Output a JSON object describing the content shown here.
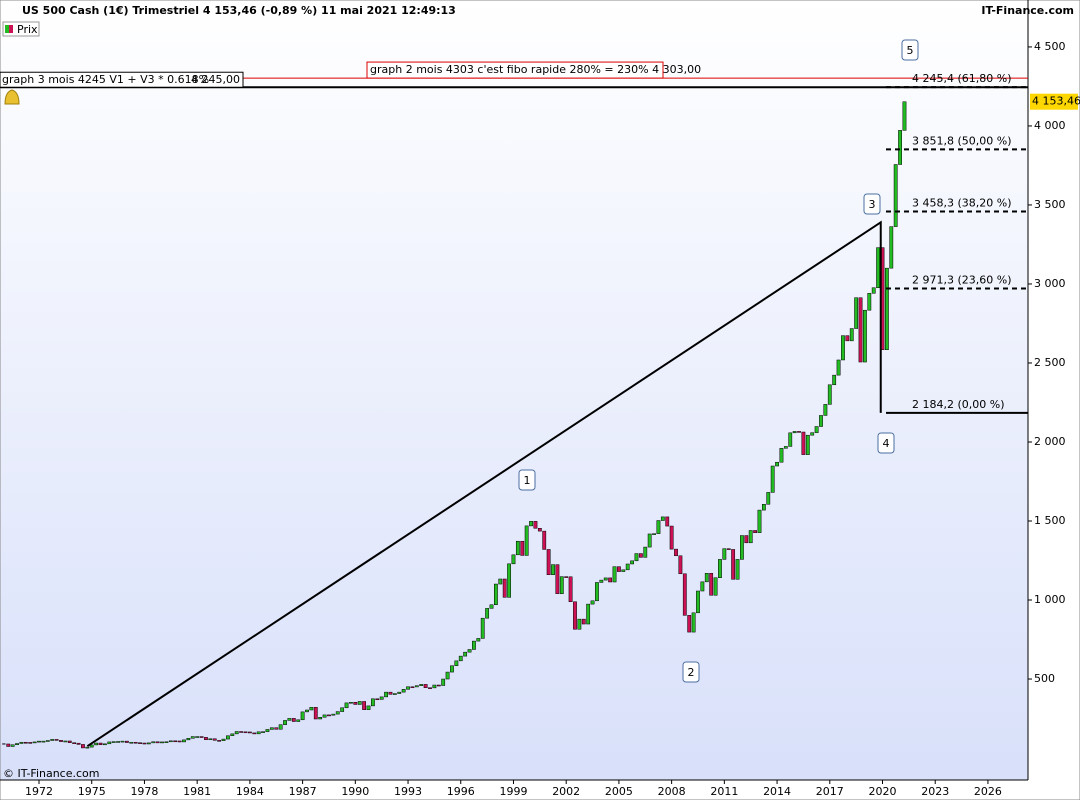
{
  "header": {
    "title": "US 500 Cash (1€) Trimestriel 4 153,46 (-0,89 %) 11 mai 2021 12:49:13",
    "brand": "IT-Finance.com",
    "legend": "Prix",
    "copyright": "© IT-Finance.com"
  },
  "chart_data": {
    "type": "candlestick",
    "x": [
      1970,
      1970.25,
      1970.5,
      1970.75,
      1971,
      1971.25,
      1971.5,
      1971.75,
      1972,
      1972.25,
      1972.5,
      1972.75,
      1973,
      1973.25,
      1973.5,
      1973.75,
      1974,
      1974.25,
      1974.5,
      1974.75,
      1975,
      1975.25,
      1975.5,
      1975.75,
      1976,
      1976.25,
      1976.5,
      1976.75,
      1977,
      1977.25,
      1977.5,
      1977.75,
      1978,
      1978.25,
      1978.5,
      1978.75,
      1979,
      1979.25,
      1979.5,
      1979.75,
      1980,
      1980.25,
      1980.5,
      1980.75,
      1981,
      1981.25,
      1981.5,
      1981.75,
      1982,
      1982.25,
      1982.5,
      1982.75,
      1983,
      1983.25,
      1983.5,
      1983.75,
      1984,
      1984.25,
      1984.5,
      1984.75,
      1985,
      1985.25,
      1985.5,
      1985.75,
      1986,
      1986.25,
      1986.5,
      1986.75,
      1987,
      1987.25,
      1987.5,
      1987.75,
      1988,
      1988.25,
      1988.5,
      1988.75,
      1989,
      1989.25,
      1989.5,
      1989.75,
      1990,
      1990.25,
      1990.5,
      1990.75,
      1991,
      1991.25,
      1991.5,
      1991.75,
      1992,
      1992.25,
      1992.5,
      1992.75,
      1993,
      1993.25,
      1993.5,
      1993.75,
      1994,
      1994.25,
      1994.5,
      1994.75,
      1995,
      1995.25,
      1995.5,
      1995.75,
      1996,
      1996.25,
      1996.5,
      1996.75,
      1997,
      1997.25,
      1997.5,
      1997.75,
      1998,
      1998.25,
      1998.5,
      1998.75,
      1999,
      1999.25,
      1999.5,
      1999.75,
      2000,
      2000.25,
      2000.5,
      2000.75,
      2001,
      2001.25,
      2001.5,
      2001.75,
      2002,
      2002.25,
      2002.5,
      2002.75,
      2003,
      2003.25,
      2003.5,
      2003.75,
      2004,
      2004.25,
      2004.5,
      2004.75,
      2005,
      2005.25,
      2005.5,
      2005.75,
      2006,
      2006.25,
      2006.5,
      2006.75,
      2007,
      2007.25,
      2007.5,
      2007.75,
      2008,
      2008.25,
      2008.5,
      2008.75,
      2009,
      2009.25,
      2009.5,
      2009.75,
      2010,
      2010.25,
      2010.5,
      2010.75,
      2011,
      2011.25,
      2011.5,
      2011.75,
      2012,
      2012.25,
      2012.5,
      2012.75,
      2013,
      2013.25,
      2013.5,
      2013.75,
      2014,
      2014.25,
      2014.5,
      2014.75,
      2015,
      2015.25,
      2015.5,
      2015.75,
      2016,
      2016.25,
      2016.5,
      2016.75,
      2017,
      2017.25,
      2017.5,
      2017.75,
      2018,
      2018.25,
      2018.5,
      2018.75,
      2019,
      2019.25,
      2019.5,
      2019.75,
      2020,
      2020.25,
      2020.5,
      2020.75,
      2021,
      2021.25
    ],
    "close": [
      89,
      73,
      84,
      92,
      100,
      99,
      97,
      102,
      107,
      107,
      111,
      118,
      112,
      104,
      108,
      97,
      94,
      86,
      64,
      69,
      83,
      95,
      84,
      90,
      102,
      104,
      105,
      107,
      98,
      100,
      97,
      95,
      89,
      96,
      103,
      96,
      102,
      103,
      109,
      108,
      102,
      115,
      125,
      136,
      136,
      131,
      116,
      122,
      112,
      110,
      120,
      141,
      153,
      168,
      166,
      165,
      159,
      153,
      166,
      167,
      181,
      192,
      182,
      211,
      238,
      251,
      231,
      242,
      292,
      304,
      321,
      247,
      258,
      273,
      271,
      278,
      294,
      318,
      349,
      353,
      339,
      358,
      306,
      330,
      375,
      371,
      387,
      417,
      403,
      408,
      417,
      435,
      451,
      450,
      458,
      466,
      445,
      444,
      462,
      459,
      500,
      544,
      584,
      615,
      645,
      670,
      687,
      740,
      757,
      885,
      947,
      970,
      1101,
      1133,
      1017,
      1229,
      1286,
      1372,
      1282,
      1469,
      1498,
      1454,
      1436,
      1320,
      1160,
      1224,
      1040,
      1148,
      1147,
      989,
      815,
      879,
      848,
      974,
      995,
      1111,
      1126,
      1140,
      1114,
      1211,
      1180,
      1191,
      1228,
      1248,
      1294,
      1270,
      1335,
      1418,
      1420,
      1503,
      1526,
      1468,
      1322,
      1280,
      1166,
      903,
      797,
      919,
      1057,
      1115,
      1169,
      1030,
      1141,
      1257,
      1325,
      1320,
      1131,
      1257,
      1408,
      1362,
      1440,
      1426,
      1569,
      1606,
      1681,
      1848,
      1872,
      1960,
      1972,
      2058,
      2067,
      2063,
      1920,
      2043,
      2059,
      2098,
      2168,
      2238,
      2362,
      2423,
      2519,
      2673,
      2640,
      2718,
      2913,
      2506,
      2834,
      2941,
      2976,
      3230,
      2584,
      3100,
      3363,
      3756,
      3972,
      4153
    ],
    "up_color": "#22bb22",
    "down_color": "#cc1155",
    "xlim": [
      1969.78,
      2028.28
    ],
    "xticks": [
      1972,
      1975,
      1978,
      1981,
      1984,
      1987,
      1990,
      1993,
      1996,
      1999,
      2002,
      2005,
      2008,
      2011,
      2014,
      2017,
      2020,
      2023,
      2026
    ],
    "ylim": [
      -139,
      4797
    ],
    "yticks": [
      500,
      {
        "value": 1000,
        "label": "1 000"
      },
      {
        "value": 1500,
        "label": "1 500"
      },
      {
        "value": 2000,
        "label": "2 000"
      },
      {
        "value": 2500,
        "label": "2 500"
      },
      {
        "value": 3000,
        "label": "3 000"
      },
      {
        "value": 3500,
        "label": "3 500"
      },
      {
        "value": 4000,
        "label": "4 000"
      },
      {
        "value": 4500,
        "label": "4 500"
      }
    ],
    "last_price": {
      "value": 4153.46,
      "label": "4 153,46"
    },
    "fibo_levels": [
      {
        "value": 4245.4,
        "label": "4 245,4 (61,80 %)",
        "style": "dashed"
      },
      {
        "value": 3851.8,
        "label": "3 851,8 (50,00 %)",
        "style": "dashed"
      },
      {
        "value": 3458.3,
        "label": "3 458,3 (38,20 %)",
        "style": "dashed"
      },
      {
        "value": 2971.3,
        "label": "2 971,3 (23,60 %)",
        "style": "dashed"
      },
      {
        "value": 2184.2,
        "label": "2 184,2 (0,00 %)",
        "style": "solid"
      }
    ],
    "horizontal_lines": [
      {
        "value": 4303,
        "label": "graph 2 mois 4303 c'est fibo rapide 280% = 230% 4 303,00",
        "color": "#dd0000"
      },
      {
        "value": 4245,
        "label": "graph 3 mois 4245 V1 + V3 * 0.618%",
        "price_label": "4 245,00",
        "color": "#000000"
      }
    ],
    "wave_labels": [
      "1",
      "2",
      "3",
      "4",
      "5"
    ],
    "wave_line": {
      "x": [
        1974.75,
        2019.9,
        2019.9
      ],
      "y": [
        75,
        3390,
        2184.2
      ]
    }
  }
}
